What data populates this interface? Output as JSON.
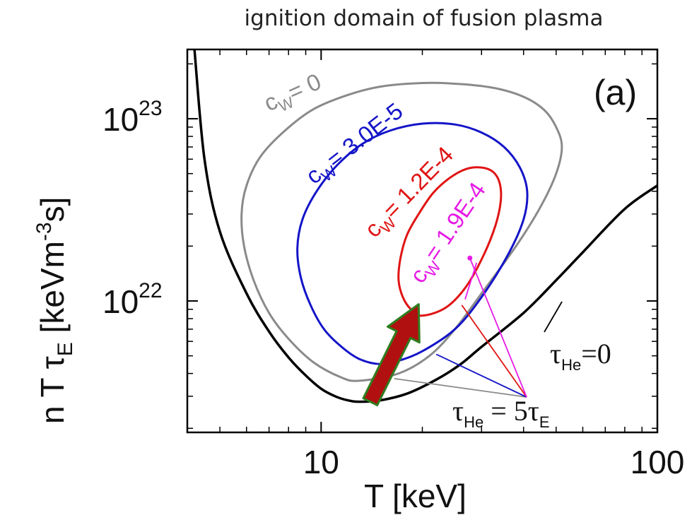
{
  "chart_data": {
    "type": "line",
    "title": "ignition domain of fusion plasma",
    "panel_label": "(a)",
    "xlabel": "T [keV]",
    "ylabel": {
      "base": "n T τ",
      "base_sub": "E",
      "unit_pre": " [keVm",
      "unit_sup": "-3",
      "unit_post": "s]"
    },
    "x_scale": "log",
    "y_scale": "log",
    "xlim": [
      4,
      100
    ],
    "ylim": [
      1.9e+21,
      2.4e+23
    ],
    "x_ticks": [
      {
        "value": 10,
        "label": "10"
      },
      {
        "value": 100,
        "label": "100"
      }
    ],
    "y_ticks": [
      {
        "value": 1e+22,
        "label": "10",
        "exp": "22"
      },
      {
        "value": 1e+23,
        "label": "10",
        "exp": "23"
      }
    ],
    "grid": false,
    "series": [
      {
        "id": "tau_he_0",
        "shape": "boundary",
        "color": "#000000",
        "points": [
          [
            4.2,
            2.4e+23
          ],
          [
            4.5,
            6e+22
          ],
          [
            5,
            2.4e+22
          ],
          [
            6,
            1.1e+22
          ],
          [
            7,
            6.8e+21
          ],
          [
            8,
            4.9e+21
          ],
          [
            9,
            3.9e+21
          ],
          [
            10,
            3.3e+21
          ],
          [
            11,
            3e+21
          ],
          [
            12,
            2.85e+21
          ],
          [
            13,
            2.8e+21
          ],
          [
            15,
            2.85e+21
          ],
          [
            18,
            3.1e+21
          ],
          [
            22,
            3.7e+21
          ],
          [
            26,
            4.5e+21
          ],
          [
            30,
            5.6e+21
          ],
          [
            40,
            8.6e+21
          ],
          [
            50,
            1.3e+22
          ],
          [
            60,
            1.85e+22
          ],
          [
            80,
            3.2e+22
          ],
          [
            100,
            4.3e+22
          ]
        ]
      },
      {
        "name": "c_W = 0",
        "label_main": "c",
        "label_sub": "W",
        "label_rest": "= 0",
        "shape": "closed",
        "color": "#8a8a8a",
        "points": [
          [
            13,
            3.65e+21
          ],
          [
            11.5,
            3.8e+21
          ],
          [
            9.5,
            4.6e+21
          ],
          [
            8,
            6.2e+21
          ],
          [
            7,
            8.6e+21
          ],
          [
            6.3,
            1.3e+22
          ],
          [
            5.9,
            2e+22
          ],
          [
            5.8,
            3e+22
          ],
          [
            6,
            4.3e+22
          ],
          [
            6.6,
            6.2e+22
          ],
          [
            7.8,
            8.6e+22
          ],
          [
            9.5,
            1.13e+23
          ],
          [
            12,
            1.35e+23
          ],
          [
            15,
            1.5e+23
          ],
          [
            20,
            1.57e+23
          ],
          [
            26,
            1.55e+23
          ],
          [
            33,
            1.47e+23
          ],
          [
            40,
            1.32e+23
          ],
          [
            46,
            1.12e+23
          ],
          [
            50,
            9e+22
          ],
          [
            52,
            7e+22
          ],
          [
            50,
            5e+22
          ],
          [
            45,
            3.3e+22
          ],
          [
            38,
            2e+22
          ],
          [
            30,
            1.1e+22
          ],
          [
            25,
            7e+21
          ],
          [
            21,
            5e+21
          ],
          [
            17,
            4e+21
          ],
          [
            13,
            3.65e+21
          ]
        ]
      },
      {
        "name": "c_W = 3.0E-5",
        "label_main": "c",
        "label_sub": "W",
        "label_rest": "= 3.0E-5",
        "shape": "closed",
        "color": "#1414c8",
        "points": [
          [
            15,
            4.5e+21
          ],
          [
            13,
            4.8e+21
          ],
          [
            11.5,
            5.6e+21
          ],
          [
            10.2,
            7e+21
          ],
          [
            9.3,
            9.5e+21
          ],
          [
            8.7,
            1.35e+22
          ],
          [
            8.5,
            1.95e+22
          ],
          [
            8.8,
            2.8e+22
          ],
          [
            9.7,
            4e+22
          ],
          [
            11.2,
            5.6e+22
          ],
          [
            13.3,
            7.3e+22
          ],
          [
            16,
            8.6e+22
          ],
          [
            20,
            9.4e+22
          ],
          [
            25,
            9.3e+22
          ],
          [
            30,
            8.4e+22
          ],
          [
            35,
            7e+22
          ],
          [
            39,
            5.4e+22
          ],
          [
            41,
            4e+22
          ],
          [
            40,
            2.8e+22
          ],
          [
            36,
            1.8e+22
          ],
          [
            30,
            1.05e+22
          ],
          [
            25,
            7e+21
          ],
          [
            20,
            5.3e+21
          ],
          [
            17,
            4.7e+21
          ],
          [
            15,
            4.5e+21
          ]
        ]
      },
      {
        "name": "c_W = 1.2E-4",
        "label_main": "c",
        "label_sub": "W",
        "label_rest": "= 1.2E-4",
        "shape": "closed",
        "color": "#e01414",
        "points": [
          [
            20,
            8.3e+21
          ],
          [
            18.5,
            9e+21
          ],
          [
            17.5,
            1.05e+22
          ],
          [
            17,
            1.3e+22
          ],
          [
            17.2,
            1.7e+22
          ],
          [
            18,
            2.3e+22
          ],
          [
            19.5,
            3e+22
          ],
          [
            21.5,
            3.9e+22
          ],
          [
            24,
            4.7e+22
          ],
          [
            27,
            5.3e+22
          ],
          [
            30,
            5.4e+22
          ],
          [
            32.5,
            5.1e+22
          ],
          [
            34,
            4.4e+22
          ],
          [
            34.2,
            3.5e+22
          ],
          [
            33,
            2.6e+22
          ],
          [
            30.5,
            1.8e+22
          ],
          [
            27,
            1.2e+22
          ],
          [
            23.5,
            9.2e+21
          ],
          [
            20,
            8.3e+21
          ]
        ]
      },
      {
        "name": "c_W = 1.9E-4",
        "label_main": "c",
        "label_sub": "W",
        "label_rest": "= 1.9E-4",
        "shape": "point",
        "color": "#e61be6",
        "points": [
          [
            27.7,
            1.72e+22
          ]
        ]
      }
    ],
    "annotations": [
      {
        "label": "τ",
        "label_sub": "He",
        "label_rest": "=0",
        "target_series": "tau_he_0"
      },
      {
        "label": "τ",
        "label_sub": "He",
        "label_rest": " = 5τ",
        "label_rest_sub": "E",
        "target_series": "c_W curves"
      }
    ],
    "arrow": {
      "color": "#b01010",
      "edge": "#2f7d1f",
      "from": [
        14,
        2.8e+21
      ],
      "to": [
        19.5,
        9.6e+21
      ]
    }
  }
}
